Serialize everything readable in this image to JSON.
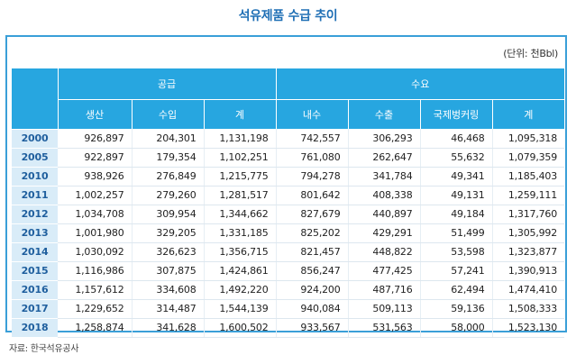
{
  "title": "석유제품 수급 추이",
  "unit": "(단위: 천Bbl)",
  "groups": {
    "supply": "공급",
    "demand": "수요"
  },
  "columns": [
    "생산",
    "수입",
    "계",
    "내수",
    "수출",
    "국제벙커링",
    "계"
  ],
  "rows": [
    {
      "year": "2000",
      "v": [
        "926,897",
        "204,301",
        "1,131,198",
        "742,557",
        "306,293",
        "46,468",
        "1,095,318"
      ]
    },
    {
      "year": "2005",
      "v": [
        "922,897",
        "179,354",
        "1,102,251",
        "761,080",
        "262,647",
        "55,632",
        "1,079,359"
      ]
    },
    {
      "year": "2010",
      "v": [
        "938,926",
        "276,849",
        "1,215,775",
        "794,278",
        "341,784",
        "49,341",
        "1,185,403"
      ]
    },
    {
      "year": "2011",
      "v": [
        "1,002,257",
        "279,260",
        "1,281,517",
        "801,642",
        "408,338",
        "49,131",
        "1,259,111"
      ]
    },
    {
      "year": "2012",
      "v": [
        "1,034,708",
        "309,954",
        "1,344,662",
        "827,679",
        "440,897",
        "49,184",
        "1,317,760"
      ]
    },
    {
      "year": "2013",
      "v": [
        "1,001,980",
        "329,205",
        "1,331,185",
        "825,202",
        "429,291",
        "51,499",
        "1,305,992"
      ]
    },
    {
      "year": "2014",
      "v": [
        "1,030,092",
        "326,623",
        "1,356,715",
        "821,457",
        "448,822",
        "53,598",
        "1,323,877"
      ]
    },
    {
      "year": "2015",
      "v": [
        "1,116,986",
        "307,875",
        "1,424,861",
        "856,247",
        "477,425",
        "57,241",
        "1,390,913"
      ]
    },
    {
      "year": "2016",
      "v": [
        "1,157,612",
        "334,608",
        "1,492,220",
        "924,200",
        "487,716",
        "62,494",
        "1,474,410"
      ]
    },
    {
      "year": "2017",
      "v": [
        "1,229,652",
        "314,487",
        "1,544,139",
        "940,084",
        "509,113",
        "59,136",
        "1,508,333"
      ]
    },
    {
      "year": "2018",
      "v": [
        "1,258,874",
        "341,628",
        "1,600,502",
        "933,567",
        "531,563",
        "58,000",
        "1,523,130"
      ]
    }
  ],
  "source": "자료: 한국석유공사",
  "colors": {
    "header": "#27a6e0",
    "year_bg": "#d9ecf8",
    "title": "#1f6fb5",
    "border": "#3a9fd8"
  }
}
